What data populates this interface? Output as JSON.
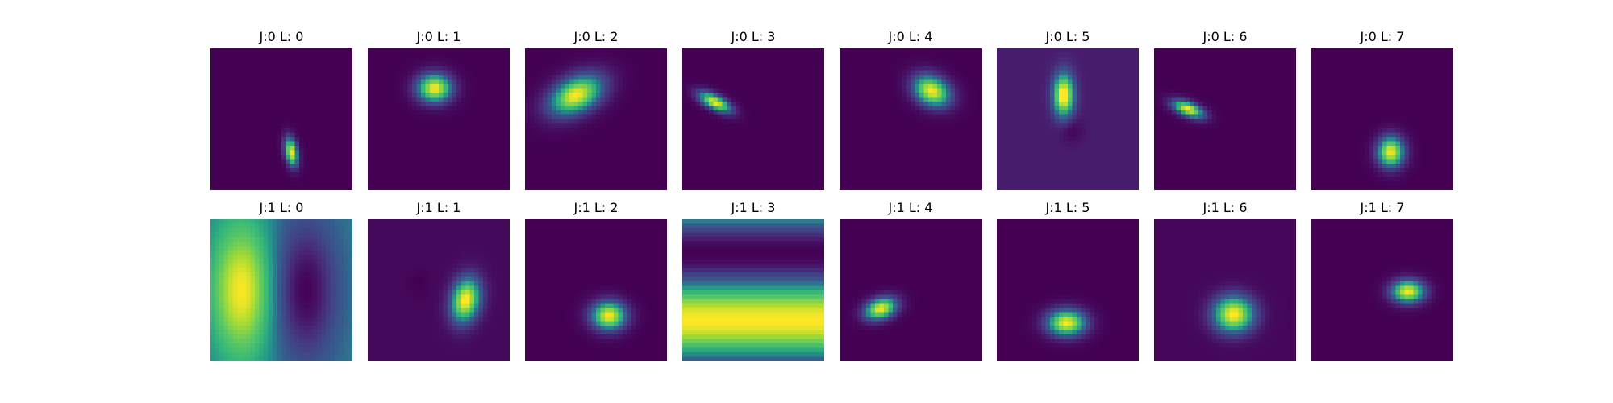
{
  "chart_data": {
    "type": "heatmap",
    "colormap": "viridis",
    "background_color": "#440154",
    "peak_color": "#fde725",
    "grid": false,
    "axes_visible": false,
    "rows": 2,
    "cols": 8,
    "panels": [
      {
        "title": "J:0 L: 0",
        "bg": 0.0,
        "blobs": [
          {
            "x": 0.57,
            "y": 0.73,
            "sx": 0.03,
            "sy": 0.07,
            "rot": -10,
            "a": 1.0
          }
        ]
      },
      {
        "title": "J:0 L: 1",
        "bg": 0.0,
        "blobs": [
          {
            "x": 0.47,
            "y": 0.28,
            "sx": 0.085,
            "sy": 0.07,
            "rot": 0,
            "a": 1.0
          }
        ]
      },
      {
        "title": "J:0 L: 2",
        "bg": 0.0,
        "blobs": [
          {
            "x": 0.36,
            "y": 0.33,
            "sx": 0.14,
            "sy": 0.085,
            "rot": -28,
            "a": 1.0
          }
        ]
      },
      {
        "title": "J:0 L: 3",
        "bg": 0.0,
        "blobs": [
          {
            "x": 0.23,
            "y": 0.38,
            "sx": 0.085,
            "sy": 0.035,
            "rot": 28,
            "a": 1.0
          }
        ]
      },
      {
        "title": "J:0 L: 4",
        "bg": 0.0,
        "blobs": [
          {
            "x": 0.65,
            "y": 0.3,
            "sx": 0.095,
            "sy": 0.07,
            "rot": 30,
            "a": 1.0
          }
        ]
      },
      {
        "title": "J:0 L: 5",
        "bg": 0.1,
        "blobs": [
          {
            "x": 0.47,
            "y": 0.33,
            "sx": 0.05,
            "sy": 0.105,
            "rot": 0,
            "a": 1.0
          },
          {
            "x": 0.52,
            "y": 0.58,
            "sx": 0.06,
            "sy": 0.06,
            "rot": 0,
            "a": -0.1
          }
        ]
      },
      {
        "title": "J:0 L: 6",
        "bg": 0.0,
        "blobs": [
          {
            "x": 0.24,
            "y": 0.43,
            "sx": 0.08,
            "sy": 0.035,
            "rot": 22,
            "a": 1.0
          }
        ]
      },
      {
        "title": "J:0 L: 7",
        "bg": 0.0,
        "blobs": [
          {
            "x": 0.56,
            "y": 0.73,
            "sx": 0.065,
            "sy": 0.075,
            "rot": 0,
            "a": 1.0
          }
        ]
      },
      {
        "title": "J:1 L: 0",
        "bg": 0.45,
        "blobs": [
          {
            "x": 0.22,
            "y": 0.5,
            "sx": 0.15,
            "sy": 0.34,
            "rot": 0,
            "a": 0.55
          },
          {
            "x": 0.67,
            "y": 0.5,
            "sx": 0.15,
            "sy": 0.34,
            "rot": 0,
            "a": -0.45
          }
        ]
      },
      {
        "title": "J:1 L: 1",
        "bg": 0.03,
        "blobs": [
          {
            "x": 0.69,
            "y": 0.57,
            "sx": 0.07,
            "sy": 0.11,
            "rot": 12,
            "a": 1.0
          },
          {
            "x": 0.36,
            "y": 0.45,
            "sx": 0.06,
            "sy": 0.08,
            "rot": 0,
            "a": -0.03
          }
        ]
      },
      {
        "title": "J:1 L: 2",
        "bg": 0.0,
        "blobs": [
          {
            "x": 0.59,
            "y": 0.68,
            "sx": 0.085,
            "sy": 0.07,
            "rot": 0,
            "a": 1.0
          }
        ]
      },
      {
        "title": "J:1 L: 3",
        "bg": 0.5,
        "stripes": {
          "period": 0.95,
          "phase": 0.25,
          "amp": 0.5
        },
        "blobs": []
      },
      {
        "title": "J:1 L: 4",
        "bg": 0.0,
        "blobs": [
          {
            "x": 0.29,
            "y": 0.63,
            "sx": 0.08,
            "sy": 0.05,
            "rot": -20,
            "a": 1.0
          }
        ]
      },
      {
        "title": "J:1 L: 5",
        "bg": 0.0,
        "blobs": [
          {
            "x": 0.49,
            "y": 0.73,
            "sx": 0.095,
            "sy": 0.065,
            "rot": 0,
            "a": 1.0
          }
        ]
      },
      {
        "title": "J:1 L: 6",
        "bg": 0.02,
        "blobs": [
          {
            "x": 0.56,
            "y": 0.67,
            "sx": 0.1,
            "sy": 0.09,
            "rot": 0,
            "a": 1.0
          }
        ]
      },
      {
        "title": "J:1 L: 7",
        "bg": 0.0,
        "blobs": [
          {
            "x": 0.68,
            "y": 0.51,
            "sx": 0.08,
            "sy": 0.055,
            "rot": 0,
            "a": 1.0
          }
        ]
      }
    ]
  }
}
